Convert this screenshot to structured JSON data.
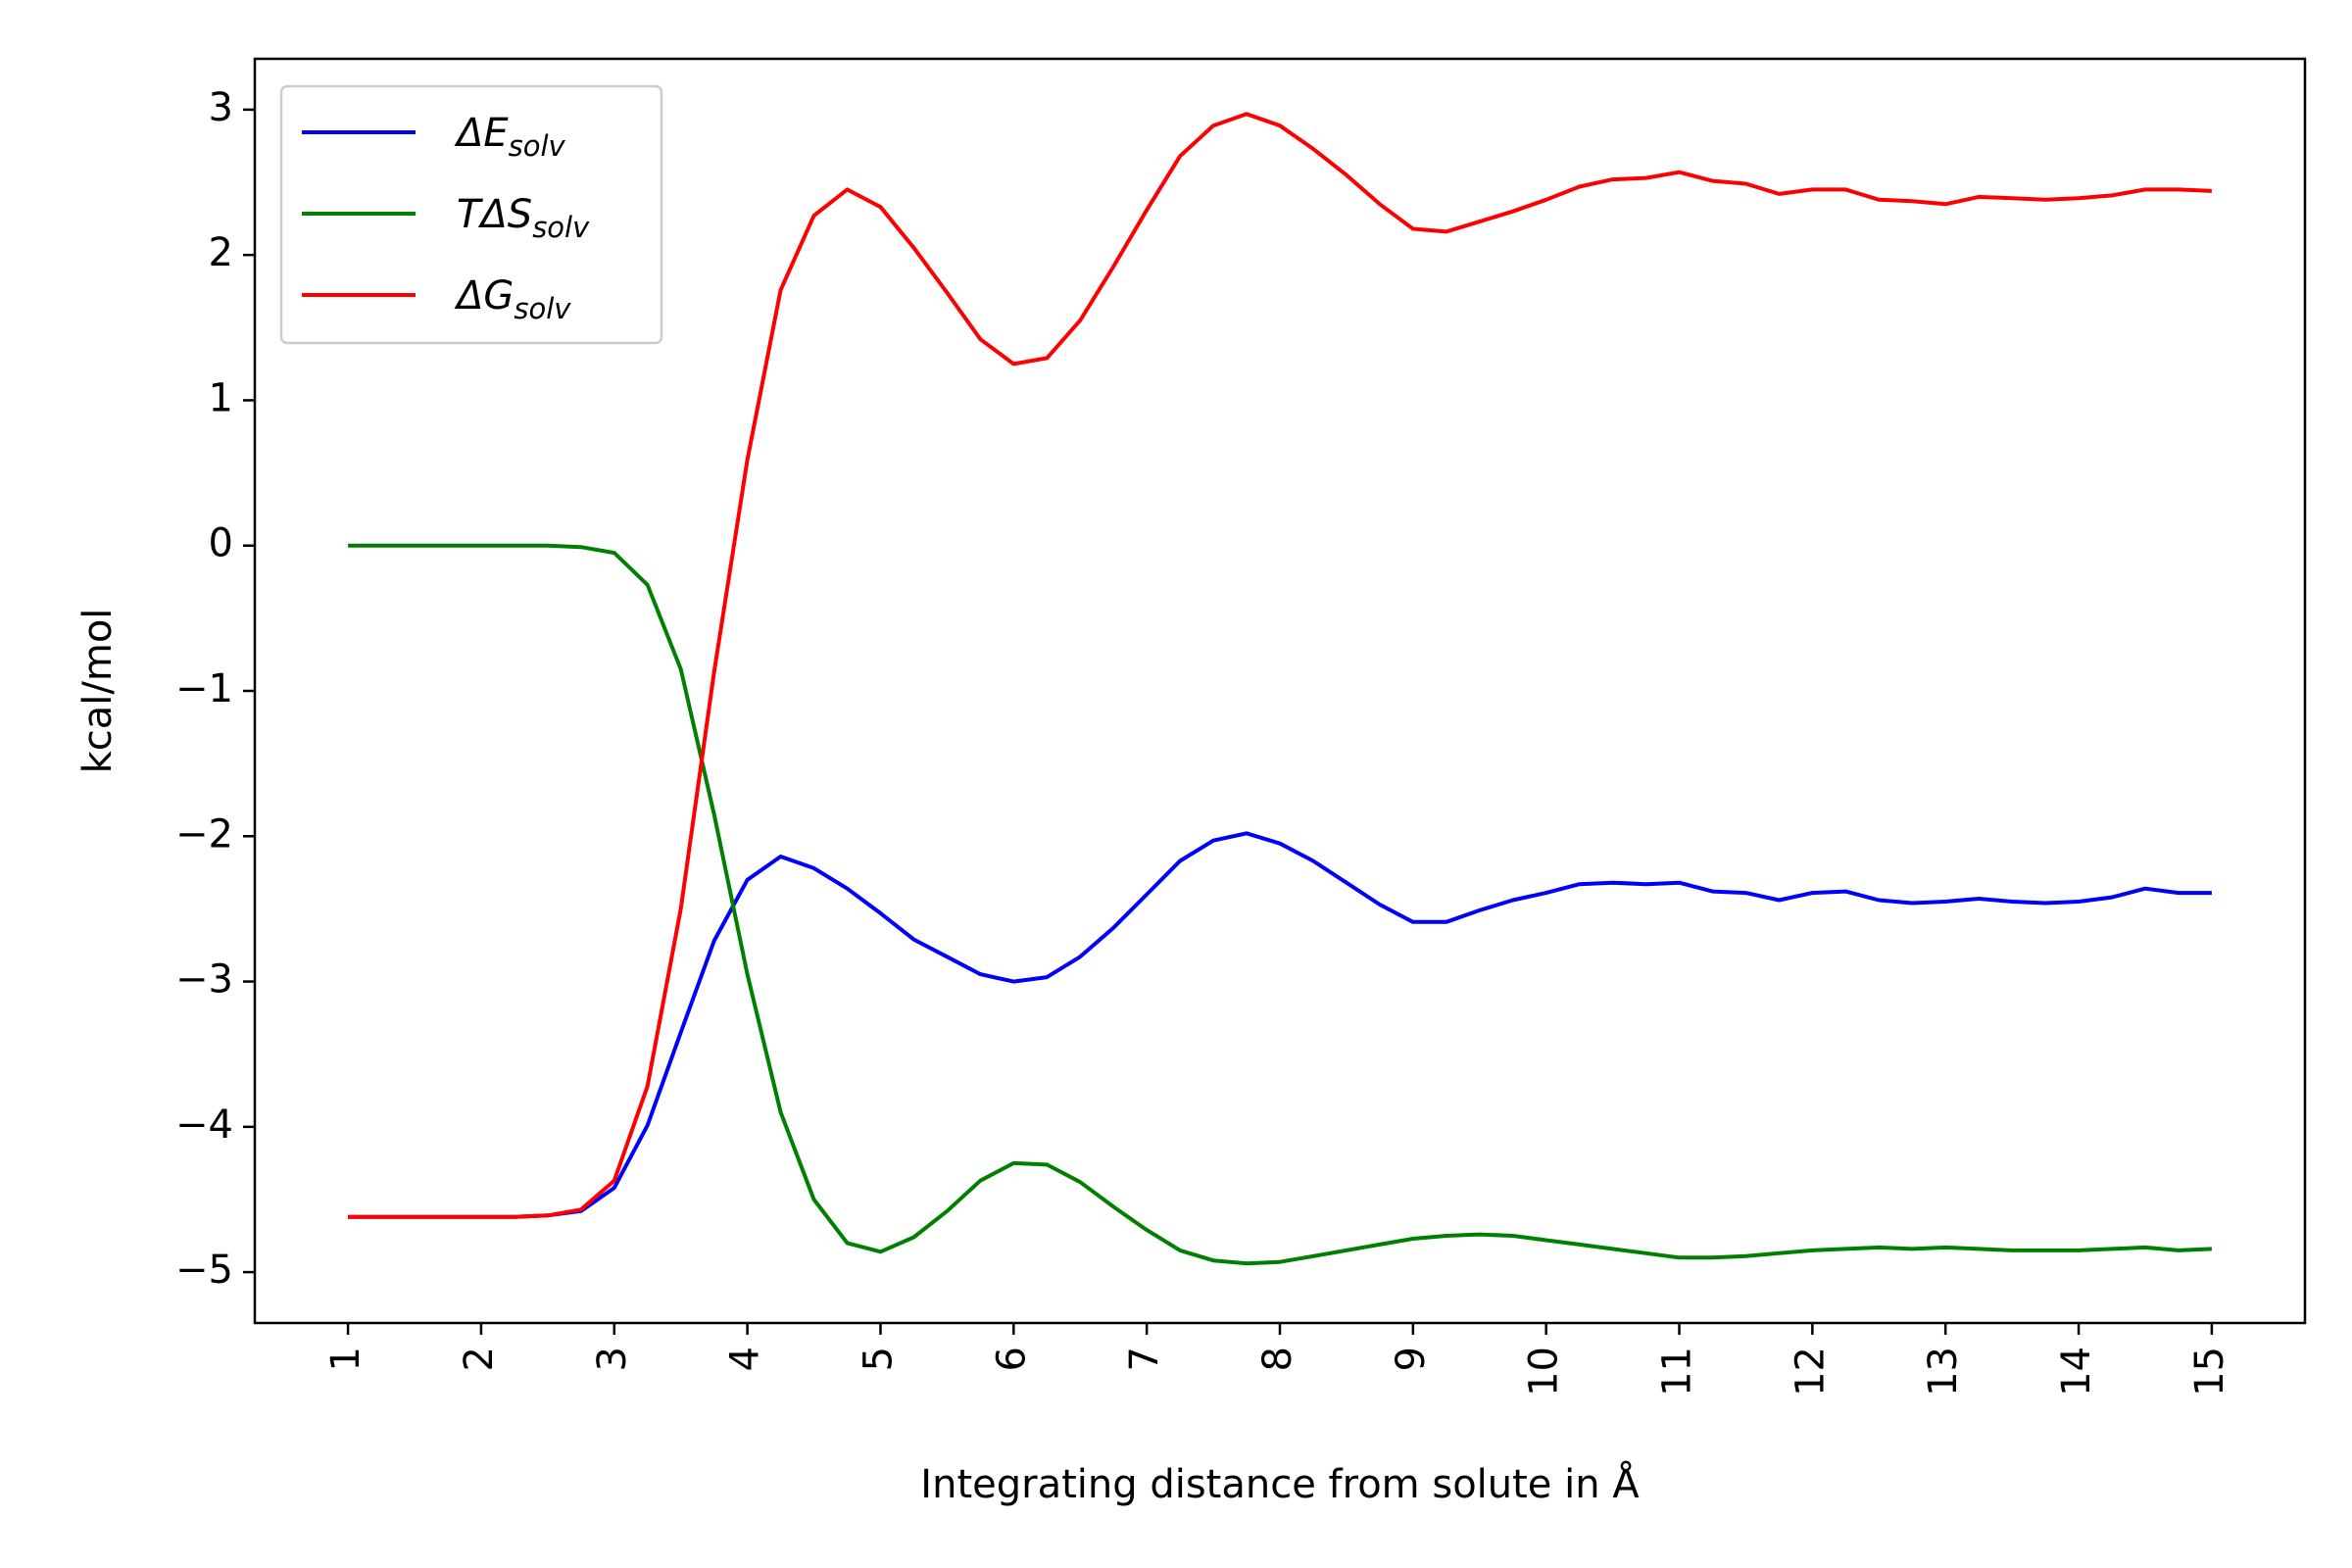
{
  "chart_data": {
    "type": "line",
    "xlabel": "Integrating distance from solute in Å",
    "ylabel": "kcal/mol",
    "xlim": [
      0.3,
      15.7
    ],
    "ylim": [
      -5.35,
      3.35
    ],
    "x_ticks": [
      1,
      2,
      3,
      4,
      5,
      6,
      7,
      8,
      9,
      10,
      11,
      12,
      13,
      14,
      15
    ],
    "x_tick_labels": [
      "1",
      "2",
      "3",
      "4",
      "5",
      "6",
      "7",
      "8",
      "9",
      "10",
      "11",
      "12",
      "13",
      "14",
      "15"
    ],
    "y_ticks": [
      3,
      2,
      1,
      0,
      -1,
      -2,
      -3,
      -4,
      -5
    ],
    "y_tick_labels": [
      "3",
      "2",
      "1",
      "0",
      "−1",
      "−2",
      "−3",
      "−4",
      "−5"
    ],
    "grid": false,
    "legend_position": "top-left",
    "x": [
      1,
      1.25,
      1.5,
      1.75,
      2,
      2.25,
      2.5,
      2.75,
      3,
      3.25,
      3.5,
      3.75,
      4,
      4.25,
      4.5,
      4.75,
      5,
      5.25,
      5.5,
      5.75,
      6,
      6.25,
      6.5,
      6.75,
      7,
      7.25,
      7.5,
      7.75,
      8,
      8.25,
      8.5,
      8.75,
      9,
      9.25,
      9.5,
      9.75,
      10,
      10.25,
      10.5,
      10.75,
      11,
      11.25,
      11.5,
      11.75,
      12,
      12.25,
      12.5,
      12.75,
      13,
      13.25,
      13.5,
      13.75,
      14,
      14.25,
      14.5,
      14.75,
      15
    ],
    "series": [
      {
        "name": "ΔE_solv",
        "legend_main": "ΔE",
        "legend_sub": "solv",
        "color": "#0000ff",
        "values": [
          -4.62,
          -4.62,
          -4.62,
          -4.62,
          -4.62,
          -4.62,
          -4.61,
          -4.58,
          -4.42,
          -3.99,
          -3.35,
          -2.72,
          -2.3,
          -2.14,
          -2.22,
          -2.36,
          -2.53,
          -2.71,
          -2.83,
          -2.95,
          -3.0,
          -2.97,
          -2.83,
          -2.63,
          -2.4,
          -2.17,
          -2.03,
          -1.98,
          -2.05,
          -2.17,
          -2.32,
          -2.47,
          -2.59,
          -2.59,
          -2.51,
          -2.44,
          -2.39,
          -2.33,
          -2.32,
          -2.33,
          -2.32,
          -2.38,
          -2.39,
          -2.44,
          -2.39,
          -2.38,
          -2.44,
          -2.46,
          -2.45,
          -2.43,
          -2.45,
          -2.46,
          -2.45,
          -2.42,
          -2.36,
          -2.39,
          -2.39
        ]
      },
      {
        "name": "TΔS_solv",
        "legend_main": "TΔS",
        "legend_sub": "solv",
        "color": "#008000",
        "values": [
          0.0,
          0.0,
          0.0,
          0.0,
          0.0,
          0.0,
          0.0,
          -0.01,
          -0.05,
          -0.27,
          -0.85,
          -1.85,
          -2.95,
          -3.9,
          -4.5,
          -4.8,
          -4.86,
          -4.76,
          -4.58,
          -4.37,
          -4.25,
          -4.26,
          -4.38,
          -4.55,
          -4.71,
          -4.85,
          -4.92,
          -4.94,
          -4.93,
          -4.89,
          -4.85,
          -4.81,
          -4.77,
          -4.75,
          -4.74,
          -4.75,
          -4.78,
          -4.81,
          -4.84,
          -4.87,
          -4.9,
          -4.9,
          -4.89,
          -4.87,
          -4.85,
          -4.84,
          -4.83,
          -4.84,
          -4.83,
          -4.84,
          -4.85,
          -4.85,
          -4.85,
          -4.84,
          -4.83,
          -4.85,
          -4.84
        ]
      },
      {
        "name": "ΔG_solv",
        "legend_main": "ΔG",
        "legend_sub": "solv",
        "color": "#ff0000",
        "values": [
          -4.62,
          -4.62,
          -4.62,
          -4.62,
          -4.62,
          -4.62,
          -4.61,
          -4.57,
          -4.37,
          -3.72,
          -2.5,
          -0.87,
          0.59,
          1.76,
          2.27,
          2.45,
          2.33,
          2.05,
          1.74,
          1.42,
          1.25,
          1.29,
          1.55,
          1.92,
          2.31,
          2.68,
          2.89,
          2.97,
          2.89,
          2.73,
          2.55,
          2.35,
          2.18,
          2.16,
          2.23,
          2.3,
          2.38,
          2.47,
          2.52,
          2.53,
          2.57,
          2.51,
          2.49,
          2.42,
          2.45,
          2.45,
          2.38,
          2.37,
          2.35,
          2.4,
          2.39,
          2.38,
          2.39,
          2.41,
          2.45,
          2.45,
          2.44
        ]
      }
    ]
  }
}
